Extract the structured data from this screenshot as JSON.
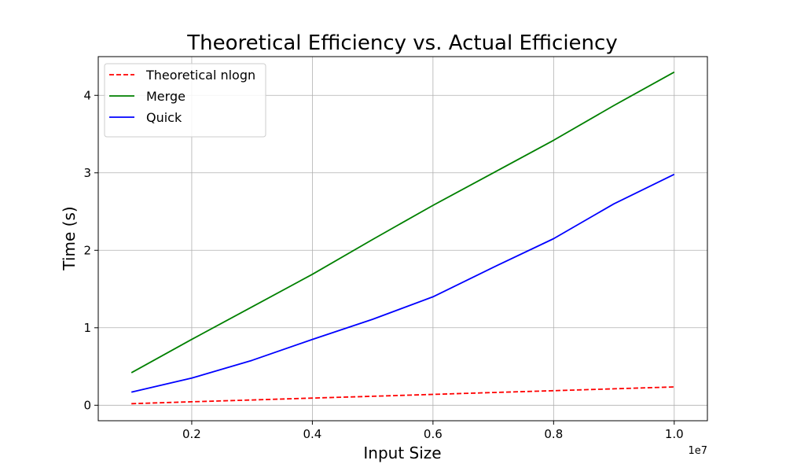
{
  "chart_data": {
    "type": "line",
    "title": "Theoretical Efficiency vs. Actual Efficiency",
    "xlabel": "Input Size",
    "ylabel": "Time (s)",
    "x_offset_label": "1e7",
    "x": [
      0.1,
      0.2,
      0.3,
      0.4,
      0.5,
      0.6,
      0.7,
      0.8,
      0.9,
      1.0
    ],
    "xlim": [
      0.045,
      1.055
    ],
    "ylim": [
      -0.2,
      4.5
    ],
    "xticks": [
      0.2,
      0.4,
      0.6,
      0.8,
      1.0
    ],
    "xtick_labels": [
      "0.2",
      "0.4",
      "0.6",
      "0.8",
      "1.0"
    ],
    "yticks": [
      0,
      1,
      2,
      3,
      4
    ],
    "ytick_labels": [
      "0",
      "1",
      "2",
      "3",
      "4"
    ],
    "grid": true,
    "legend_position": "top-left",
    "series": [
      {
        "name": "Theoretical nlogn",
        "color": "#ff0000",
        "style": "dashed",
        "values": [
          0.02,
          0.045,
          0.068,
          0.092,
          0.116,
          0.14,
          0.164,
          0.188,
          0.212,
          0.236
        ]
      },
      {
        "name": "Merge",
        "color": "#008000",
        "style": "solid",
        "values": [
          0.42,
          0.85,
          1.27,
          1.69,
          2.14,
          2.58,
          3.0,
          3.42,
          3.87,
          4.3
        ]
      },
      {
        "name": "Quick",
        "color": "#0000ff",
        "style": "solid",
        "values": [
          0.17,
          0.35,
          0.58,
          0.85,
          1.11,
          1.4,
          1.78,
          2.15,
          2.6,
          2.98
        ]
      }
    ]
  }
}
